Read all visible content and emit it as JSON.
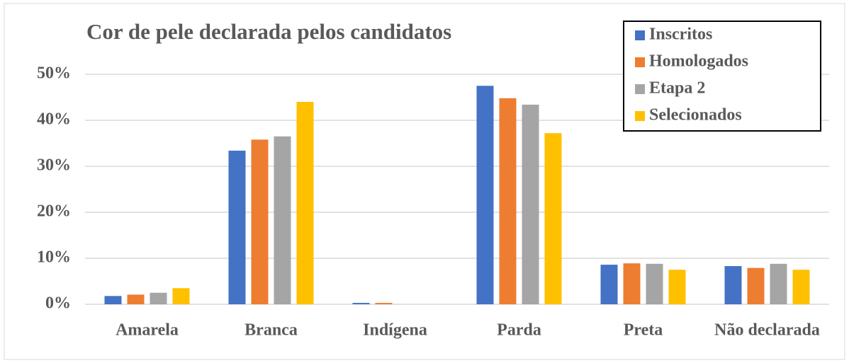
{
  "chart_data": {
    "type": "bar",
    "title": "Cor de pele declarada pelos candidatos",
    "categories": [
      "Amarela",
      "Branca",
      "Indígena",
      "Parda",
      "Preta",
      "Não declarada"
    ],
    "series": [
      {
        "name": "Inscritos",
        "color": "#4472c4",
        "values": [
          1.8,
          33.4,
          0.3,
          47.5,
          8.6,
          8.3
        ]
      },
      {
        "name": "Homologados",
        "color": "#ed7d31",
        "values": [
          2.1,
          35.8,
          0.3,
          44.8,
          8.9,
          7.9
        ]
      },
      {
        "name": "Etapa 2",
        "color": "#a5a5a5",
        "values": [
          2.5,
          36.5,
          0,
          43.4,
          8.8,
          8.8
        ]
      },
      {
        "name": "Selecionados",
        "color": "#ffc000",
        "values": [
          3.5,
          44,
          0,
          37.2,
          7.5,
          7.5
        ]
      }
    ],
    "ylim": [
      0,
      50
    ],
    "yticks": [
      {
        "value": 0,
        "label": "0%"
      },
      {
        "value": 10,
        "label": "10%"
      },
      {
        "value": 20,
        "label": "20%"
      },
      {
        "value": 30,
        "label": "30%"
      },
      {
        "value": 40,
        "label": "40%"
      },
      {
        "value": 50,
        "label": "50%"
      }
    ],
    "grid": true,
    "legend": "upper right"
  }
}
